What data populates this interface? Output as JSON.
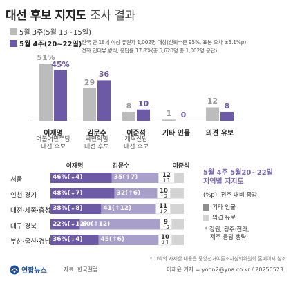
{
  "header": {
    "title_bold": "대선 후보 지지도",
    "title_light": "조사 결과"
  },
  "legend": {
    "prev_label": "5월 3주(5월 13~15일)",
    "curr_label": "5월 4주(20~22일)",
    "note_line1": "전국 만 18세 이상 유권자 1,002명 대상(신뢰수준 95%, 표본 오차 ±3.1%p)",
    "note_line2": "전화 인터뷰 방식, 응답률 17.8%(총 5,620명 중 1,002명 응답)"
  },
  "colors": {
    "prev": "#bcbcbc",
    "curr": "#6d5aa6",
    "curr_light": "#a99fcb",
    "gray_seg": "#d4d4d4",
    "gray_dark": "#8e8e8e",
    "accent_text": "#7a68b0"
  },
  "candidates": [
    {
      "name": "이재명",
      "sub": [
        "더불어민주당",
        "대선 후보"
      ]
    },
    {
      "name": "김문수",
      "sub": [
        "국민의힘",
        "대선 후보"
      ]
    },
    {
      "name": "이준석",
      "sub": [
        "개혁신당",
        "대선 후보"
      ]
    },
    {
      "name": "기타 인물",
      "sub": []
    },
    {
      "name": "의견 유보",
      "sub": []
    }
  ],
  "region_header": [
    "이재명",
    "김문수",
    "이준석"
  ],
  "side_panel": {
    "title_line1": "5월 4주 5월20~22일",
    "title_line2": "지역별 지지도",
    "unit": "(%p): 전주 대비 증감",
    "legend_other": "기타 인물",
    "legend_reserve": "의견 유보",
    "note_line1": "* 강원, 광주·전라,",
    "note_line2": "제주 응답 생략"
  },
  "footer": {
    "source_note": "* 그밖의 자세한 내용은 중앙선거여론조사심의위원회 홈페이지 참조",
    "logo": "연합뉴스",
    "source": "자료: 한국갤럽",
    "credit": "이재윤 기자 = yoon2@yna.co.kr / 20250523"
  },
  "chart_data": [
    {
      "type": "bar",
      "title": "대선 후보 지지도 조사 결과",
      "categories": [
        "이재명",
        "김문수",
        "이준석",
        "기타 인물",
        "의견 유보"
      ],
      "series": [
        {
          "name": "5월 3주(5월 13~15일)",
          "values": [
            51,
            29,
            8,
            1,
            12
          ]
        },
        {
          "name": "5월 4주(20~22일)",
          "values": [
            45,
            36,
            10,
            0,
            8
          ]
        }
      ],
      "value_labels_prev": [
        "51%",
        "29",
        "8",
        "1",
        "12"
      ],
      "value_labels_curr": [
        "45%",
        "36",
        "10",
        "0",
        "8"
      ],
      "ylim": [
        0,
        55
      ]
    },
    {
      "type": "bar",
      "stacked": true,
      "orientation": "horizontal",
      "title": "지역별 지지도",
      "categories": [
        "서울",
        "인천·경기",
        "대전·세종·충청",
        "대구·경북",
        "부산·울산·경남"
      ],
      "series": [
        {
          "name": "이재명",
          "values": [
            46,
            48,
            38,
            22,
            36
          ],
          "labels": [
            "46%(↓4)",
            "48%(↓7)",
            "38%(↓8)",
            "22%(↓12)",
            "36%(↓4)"
          ]
        },
        {
          "name": "김문수",
          "values": [
            35,
            32,
            41,
            60,
            45
          ],
          "labels": [
            "35(↑7)",
            "32(↑6)",
            "41(↑12)",
            "60(↑12)",
            "45(↑6)"
          ]
        },
        {
          "name": "이준석",
          "values": [
            12,
            10,
            11,
            9,
            10
          ],
          "labels": [
            "12",
            "10",
            "11",
            "9",
            "10"
          ],
          "changes": [
            "↑1",
            "↑2",
            "↓2",
            "↑2",
            "↓1"
          ]
        },
        {
          "name": "기타 인물",
          "values": [
            0,
            0,
            0,
            0,
            0
          ]
        },
        {
          "name": "의견 유보",
          "values": [
            7,
            10,
            10,
            9,
            9
          ]
        }
      ],
      "xlim": [
        0,
        100
      ]
    }
  ]
}
